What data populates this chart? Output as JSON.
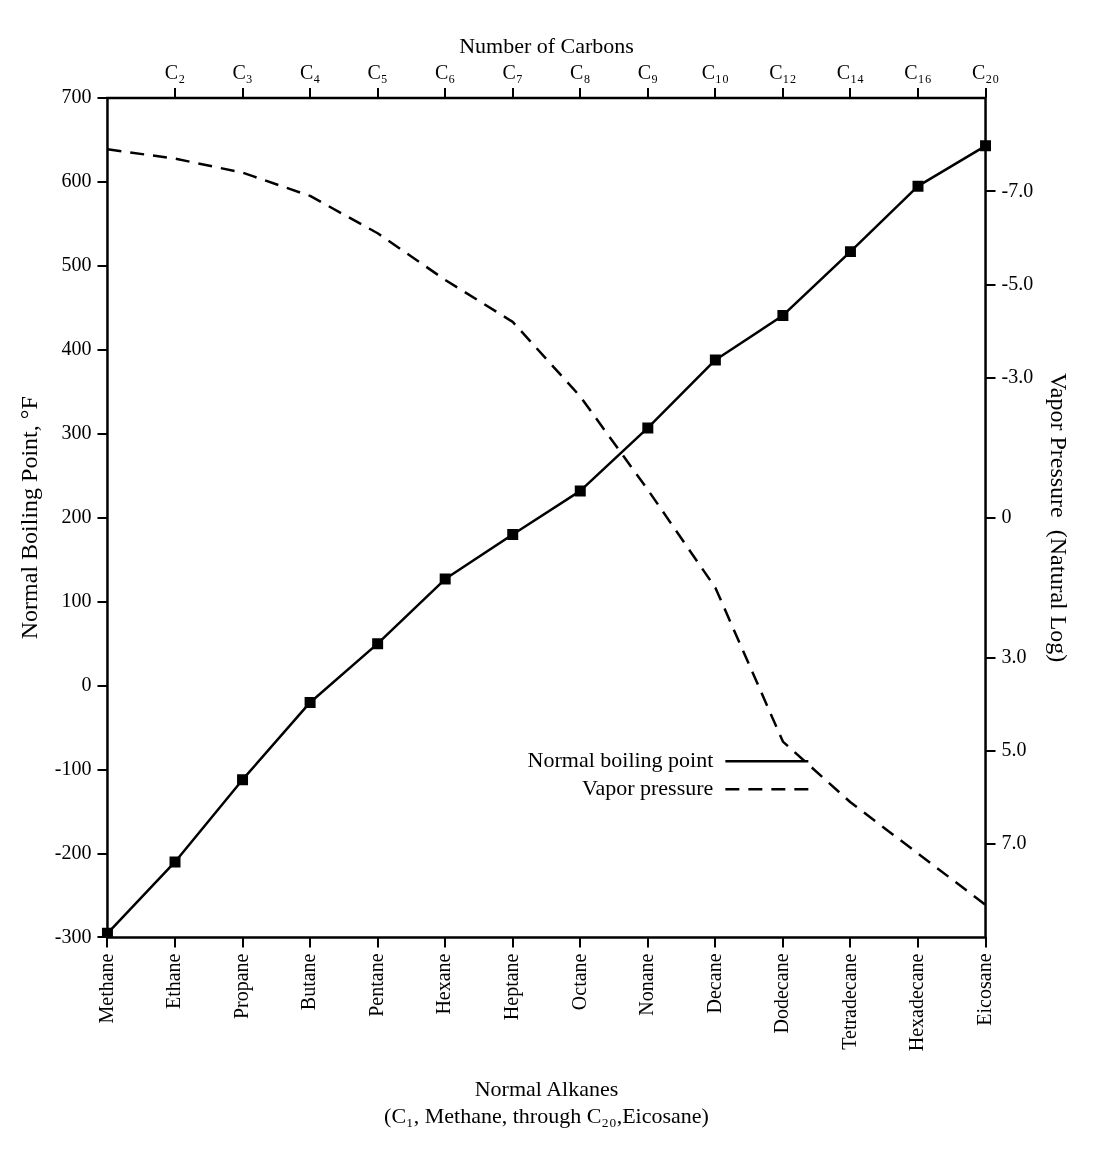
{
  "chart_data": {
    "type": "line",
    "x2label": "Number of Carbons",
    "xlabel": "Normal Alkanes\n(C₁, Methane, through C₂₀,Eicosane)",
    "ylabel": "Normal Boiling Point, °F",
    "y2label": "Vapor Pressure  (Natural Log)",
    "categories": [
      "Methane",
      "Ethane",
      "Propane",
      "Butane",
      "Pentane",
      "Hexane",
      "Heptane",
      "Octane",
      "Nonane",
      "Decane",
      "Dodecane",
      "Tetradecane",
      "Hexadecane",
      "Eicosane"
    ],
    "annotations": [
      "C₂",
      "C₃",
      "C₄",
      "C₅",
      "C₆",
      "C₇",
      "C₈",
      "C₉",
      "C₁₀",
      "C₁₂",
      "C₁₄",
      "C₁₆",
      "C₂₀"
    ],
    "ylim": [
      -300,
      700
    ],
    "yticks": [
      -300,
      -200,
      -100,
      0,
      100,
      200,
      300,
      400,
      500,
      600,
      700
    ],
    "y2lim": [
      9,
      -9
    ],
    "y2ticks": [
      {
        "value": -7,
        "label": "-7.0"
      },
      {
        "value": -5,
        "label": "-5.0"
      },
      {
        "value": -3,
        "label": "-3.0"
      },
      0,
      {
        "value": 3,
        "label": "3.0"
      },
      {
        "value": 5,
        "label": "5.0"
      },
      {
        "value": 7,
        "label": "7.0"
      }
    ],
    "legend": "bottom",
    "series": [
      {
        "name": "Normal boiling point",
        "color": "#000000",
        "marker": "square",
        "line_style": "solid",
        "values": [
          -295,
          -210,
          -112,
          -20,
          50,
          127,
          180,
          232,
          307,
          388,
          441,
          517,
          595,
          643
        ]
      },
      {
        "name": "Vapor pressure",
        "color": "#000000",
        "marker": "none",
        "line_style": "dashed",
        "axis": "y2",
        "values": [
          -7.9,
          -7.7,
          -7.4,
          -6.9,
          -6.1,
          -5.1,
          -4.2,
          -2.6,
          -0.6,
          1.5,
          4.8,
          6.1,
          7.2,
          8.3
        ]
      }
    ]
  }
}
